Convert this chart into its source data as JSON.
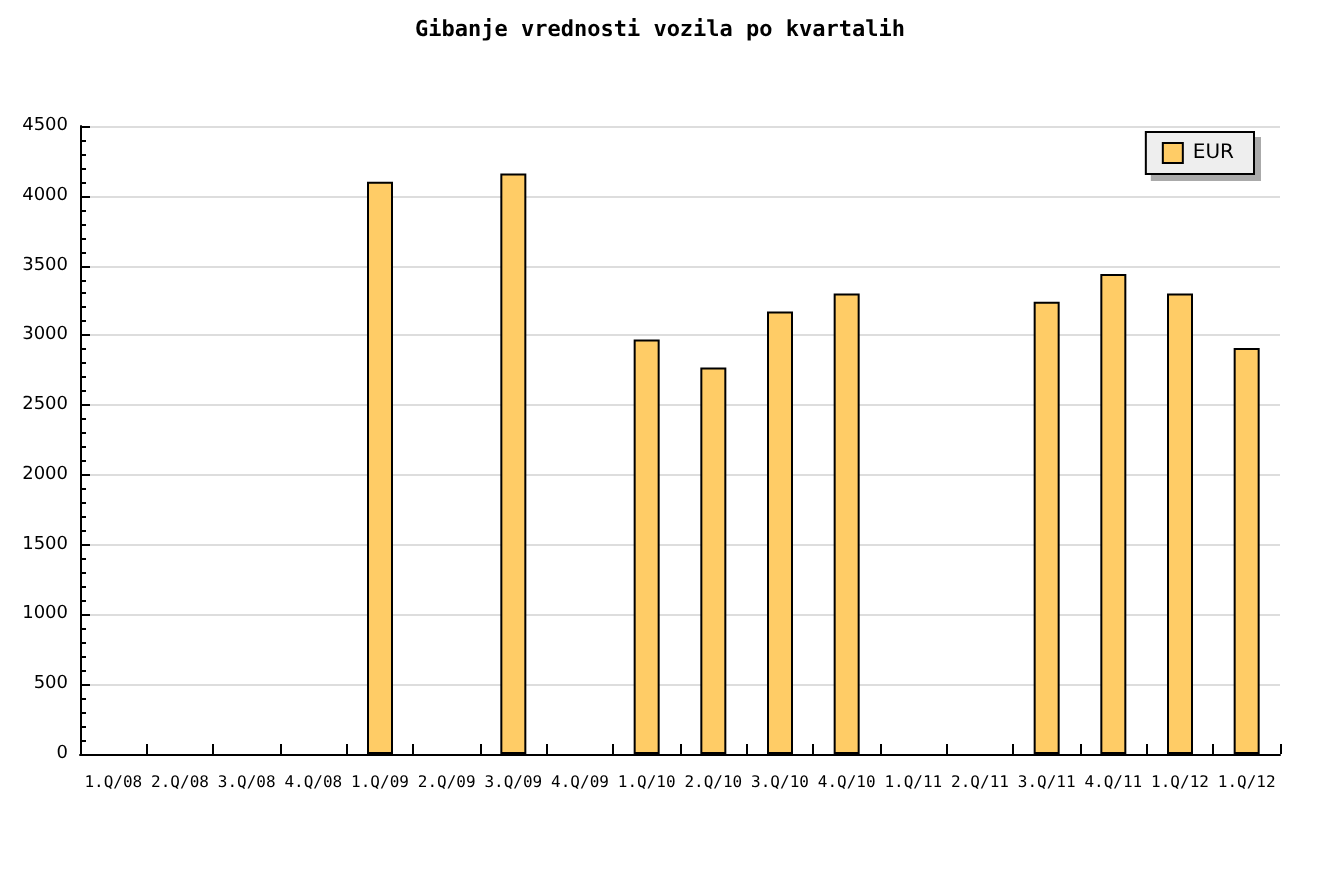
{
  "chart_data": {
    "type": "bar",
    "title": "Gibanje vrednosti vozila po kvartalih",
    "categories": [
      "1.Q/08",
      "2.Q/08",
      "3.Q/08",
      "4.Q/08",
      "1.Q/09",
      "2.Q/09",
      "3.Q/09",
      "4.Q/09",
      "1.Q/10",
      "2.Q/10",
      "3.Q/10",
      "4.Q/10",
      "1.Q/11",
      "2.Q/11",
      "3.Q/11",
      "4.Q/11",
      "1.Q/12",
      "1.Q/12"
    ],
    "series": [
      {
        "name": "EUR",
        "color": "#ffcc66",
        "values": [
          null,
          null,
          null,
          null,
          4100,
          null,
          4160,
          null,
          2970,
          2770,
          3170,
          3300,
          null,
          null,
          3240,
          3440,
          3300,
          2910
        ]
      }
    ],
    "ylim": [
      0,
      4500
    ],
    "yticks": [
      0,
      500,
      1000,
      1500,
      2000,
      2500,
      3000,
      3500,
      4000,
      4500
    ],
    "grid": "y",
    "legend": "top right"
  }
}
